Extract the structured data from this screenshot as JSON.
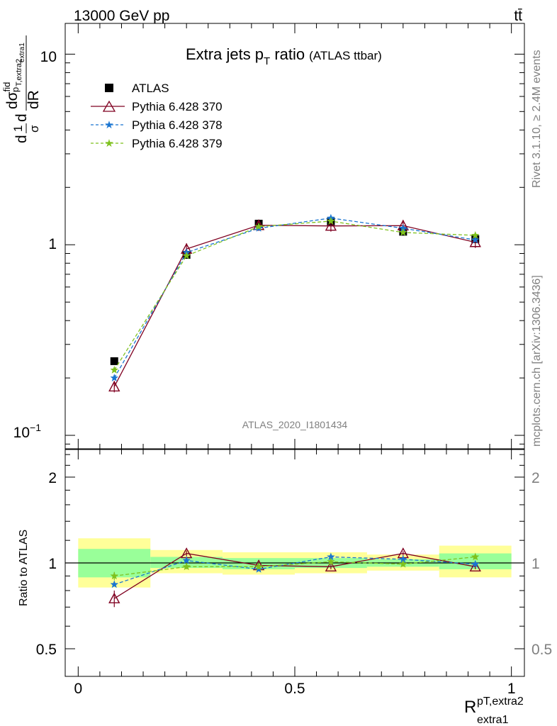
{
  "header": {
    "energy": "13000 GeV pp",
    "process": "tt̄",
    "side_top": "Rivet 3.1.10, ≥ 2.4M events",
    "side_bottom": "mcplots.cern.ch [arXiv:1306.3436]",
    "analysis_id": "ATLAS_2020_I1801434"
  },
  "chart_data": {
    "type": "scatter",
    "title": "Extra jets p",
    "title_sub": "T",
    "title_rest": " ratio",
    "title_small": "(ATLAS ttbar)",
    "ylabel_main": {
      "frac1_top": "1",
      "frac1_bot": "σ",
      "d_pre": "d",
      "frac2_top": "dσ",
      "frac2_top_sup": "fid",
      "frac2_bot": "dR",
      "sub_p": "p",
      "sub_T": "T,extra2",
      "sub_extra": "extra1"
    },
    "ylabel_ratio": "Ratio to ATLAS",
    "xlabel": {
      "main": "R",
      "sup": "pT,extra2",
      "sub": "extra1"
    },
    "x_ticks": [
      "0",
      "0.5",
      "1"
    ],
    "y_ticks_main": [
      "10",
      "1"
    ],
    "y_tick_main_low": {
      "base": "10",
      "exp": "−1"
    },
    "y_ticks_ratio": [
      "2",
      "1",
      "0.5"
    ],
    "ylim_main": [
      0.085,
      14.5
    ],
    "ylim_ratio": [
      0.4,
      2.5
    ],
    "xlim": [
      -0.03,
      1.03
    ],
    "log_y": true,
    "legend_placement": "top-left",
    "bins": [
      {
        "x": 0.0833,
        "lo": 0.0,
        "hi": 0.1667
      },
      {
        "x": 0.25,
        "lo": 0.1667,
        "hi": 0.3333
      },
      {
        "x": 0.4167,
        "lo": 0.3333,
        "hi": 0.5
      },
      {
        "x": 0.5833,
        "lo": 0.5,
        "hi": 0.6667
      },
      {
        "x": 0.75,
        "lo": 0.6667,
        "hi": 0.8333
      },
      {
        "x": 0.9167,
        "lo": 0.8333,
        "hi": 1.0
      }
    ],
    "series": [
      {
        "name": "ATLAS",
        "color": "#000000",
        "marker": "square",
        "values": [
          0.245,
          0.885,
          1.29,
          1.325,
          1.17,
          1.07
        ],
        "ratio": [
          1,
          1,
          1,
          1,
          1,
          1
        ]
      },
      {
        "name": "Pythia 6.428 370",
        "color": "#7f0020",
        "marker": "triangle",
        "values": [
          0.18,
          0.95,
          1.265,
          1.255,
          1.26,
          1.03
        ],
        "ratio": [
          0.75,
          1.08,
          0.98,
          0.97,
          1.08,
          0.97
        ],
        "ratio_err": [
          0.05,
          0.025,
          0.02,
          0.02,
          0.02,
          0.02
        ]
      },
      {
        "name": "Pythia 6.428 378",
        "color": "#1a75d1",
        "marker": "star",
        "values": [
          0.2,
          0.91,
          1.22,
          1.38,
          1.22,
          1.06
        ],
        "ratio": [
          0.84,
          1.02,
          0.95,
          1.05,
          1.03,
          0.99
        ]
      },
      {
        "name": "Pythia 6.428 379",
        "color": "#7ec11e",
        "marker": "star",
        "values": [
          0.22,
          0.875,
          1.245,
          1.33,
          1.16,
          1.12
        ],
        "ratio": [
          0.9,
          0.97,
          0.97,
          1.01,
          0.99,
          1.05
        ],
        "ratio_err": [
          0.03,
          0.02,
          0.02,
          0.02,
          0.02,
          0.02
        ]
      }
    ],
    "uncertainty_bands": {
      "inner_color": "#99ff99",
      "outer_color": "#ffff99",
      "inner": [
        [
          0.89,
          1.12
        ],
        [
          0.96,
          1.05
        ],
        [
          0.95,
          1.04
        ],
        [
          0.96,
          1.04
        ],
        [
          0.97,
          1.03
        ],
        [
          0.95,
          1.08
        ]
      ],
      "outer": [
        [
          0.82,
          1.22
        ],
        [
          0.92,
          1.11
        ],
        [
          0.91,
          1.09
        ],
        [
          0.92,
          1.09
        ],
        [
          0.94,
          1.07
        ],
        [
          0.89,
          1.15
        ]
      ]
    }
  }
}
